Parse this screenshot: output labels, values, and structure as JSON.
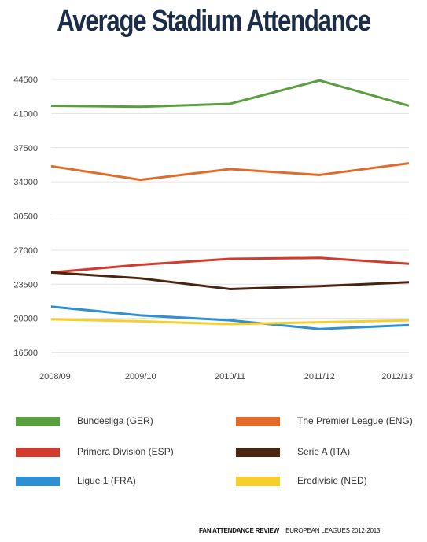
{
  "title": "Average Stadium Attendance",
  "footer": {
    "brand": "FAN ATTENDANCE REVIEW",
    "subtitle": "EUROPEAN LEAGUES 2012-2013"
  },
  "chart_data": {
    "type": "line",
    "title": "Average Stadium Attendance",
    "xlabel": "",
    "ylabel": "",
    "categories": [
      "2008/09",
      "2009/10",
      "2010/11",
      "2011/12",
      "2012/13"
    ],
    "yticks": [
      16500,
      20000,
      23500,
      27000,
      30500,
      34000,
      37500,
      41000,
      44500
    ],
    "ylim": [
      16500,
      44500
    ],
    "grid": "horizontal",
    "legend_position": "bottom",
    "series": [
      {
        "name": "Bundesliga (GER)",
        "color": "#5a9e3f",
        "values": [
          41800,
          41700,
          42000,
          44400,
          41800
        ]
      },
      {
        "name": "The Premier League (ENG)",
        "color": "#e06b2b",
        "values": [
          35600,
          34200,
          35300,
          34700,
          35900
        ]
      },
      {
        "name": "Primera División (ESP)",
        "color": "#d23a2e",
        "values": [
          24700,
          25500,
          26100,
          26200,
          25600
        ]
      },
      {
        "name": "Serie A (ITA)",
        "color": "#4a2410",
        "values": [
          24700,
          24100,
          23000,
          23300,
          23700
        ]
      },
      {
        "name": "Ligue 1  (FRA)",
        "color": "#2f8fd3",
        "values": [
          21200,
          20300,
          19800,
          18900,
          19300
        ]
      },
      {
        "name": "Eredivisie (NED)",
        "color": "#f4cf2e",
        "values": [
          19900,
          19700,
          19400,
          19600,
          19800
        ]
      }
    ]
  }
}
